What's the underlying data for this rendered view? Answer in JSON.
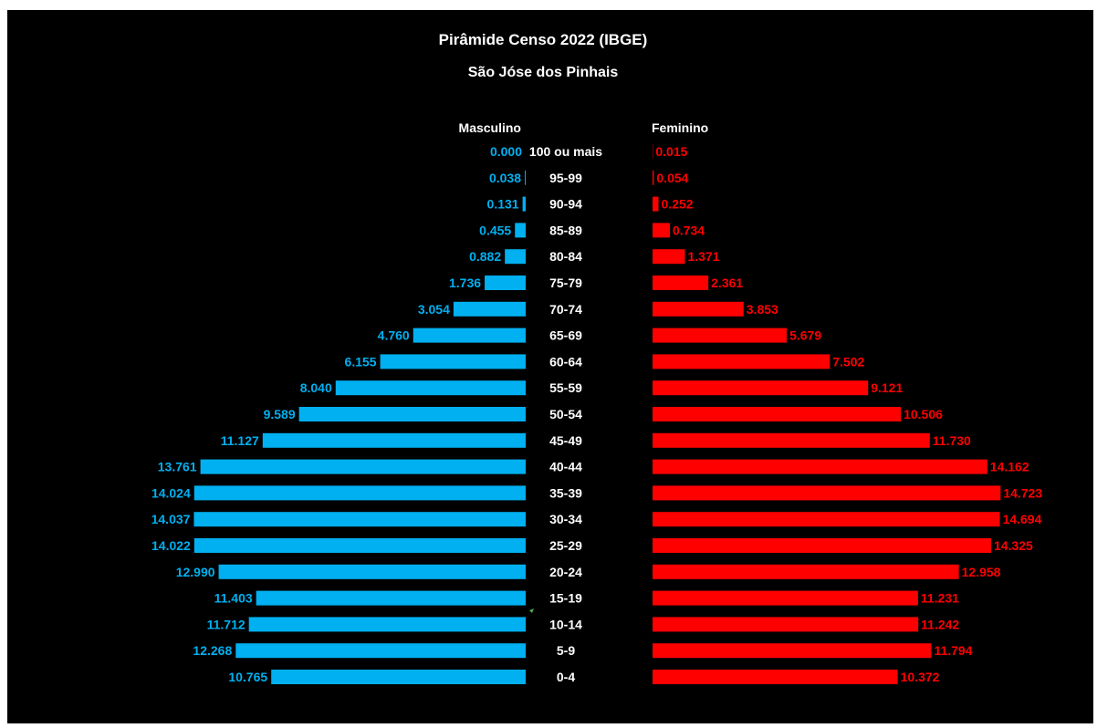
{
  "chart_data": {
    "type": "bar",
    "orientation": "horizontal",
    "title": "Pirâmide Censo 2022  (IBGE)",
    "subtitle": "São Jóse dos Pinhais",
    "categories": [
      "100 ou mais",
      "95-99",
      "90-94",
      "85-89",
      "80-84",
      "75-79",
      "70-74",
      "65-69",
      "60-64",
      "55-59",
      "50-54",
      "45-49",
      "40-44",
      "35-39",
      "30-34",
      "25-29",
      "20-24",
      "15-19",
      "10-14",
      "5-9",
      "0-4"
    ],
    "series": [
      {
        "name": "Masculino",
        "color": "#00b0f0",
        "values": [
          0.0,
          0.038,
          0.131,
          0.455,
          0.882,
          1.736,
          3.054,
          4.76,
          6.155,
          8.04,
          9.589,
          11.127,
          13.761,
          14.024,
          14.037,
          14.022,
          12.99,
          11.403,
          11.712,
          12.268,
          10.765
        ],
        "labels": [
          "0.000",
          "0.038",
          "0.131",
          "0.455",
          "0.882",
          "1.736",
          "3.054",
          "4.760",
          "6.155",
          "8.040",
          "9.589",
          "11.127",
          "13.761",
          "14.024",
          "14.037",
          "14.022",
          "12.990",
          "11.403",
          "11.712",
          "12.268",
          "10.765"
        ]
      },
      {
        "name": "Feminino",
        "color": "#ff0000",
        "values": [
          0.015,
          0.054,
          0.252,
          0.734,
          1.371,
          2.361,
          3.853,
          5.679,
          7.502,
          9.121,
          10.506,
          11.73,
          14.162,
          14.723,
          14.694,
          14.325,
          12.958,
          11.231,
          11.242,
          11.794,
          10.372
        ],
        "labels": [
          "0.015",
          "0.054",
          "0.252",
          "0.734",
          "1.371",
          "2.361",
          "3.853",
          "5.679",
          "7.502",
          "9.121",
          "10.506",
          "11.730",
          "14.162",
          "14.723",
          "14.694",
          "14.325",
          "12.958",
          "11.231",
          "11.242",
          "11.794",
          "10.372"
        ]
      }
    ],
    "background": "#000000",
    "grid": false
  }
}
